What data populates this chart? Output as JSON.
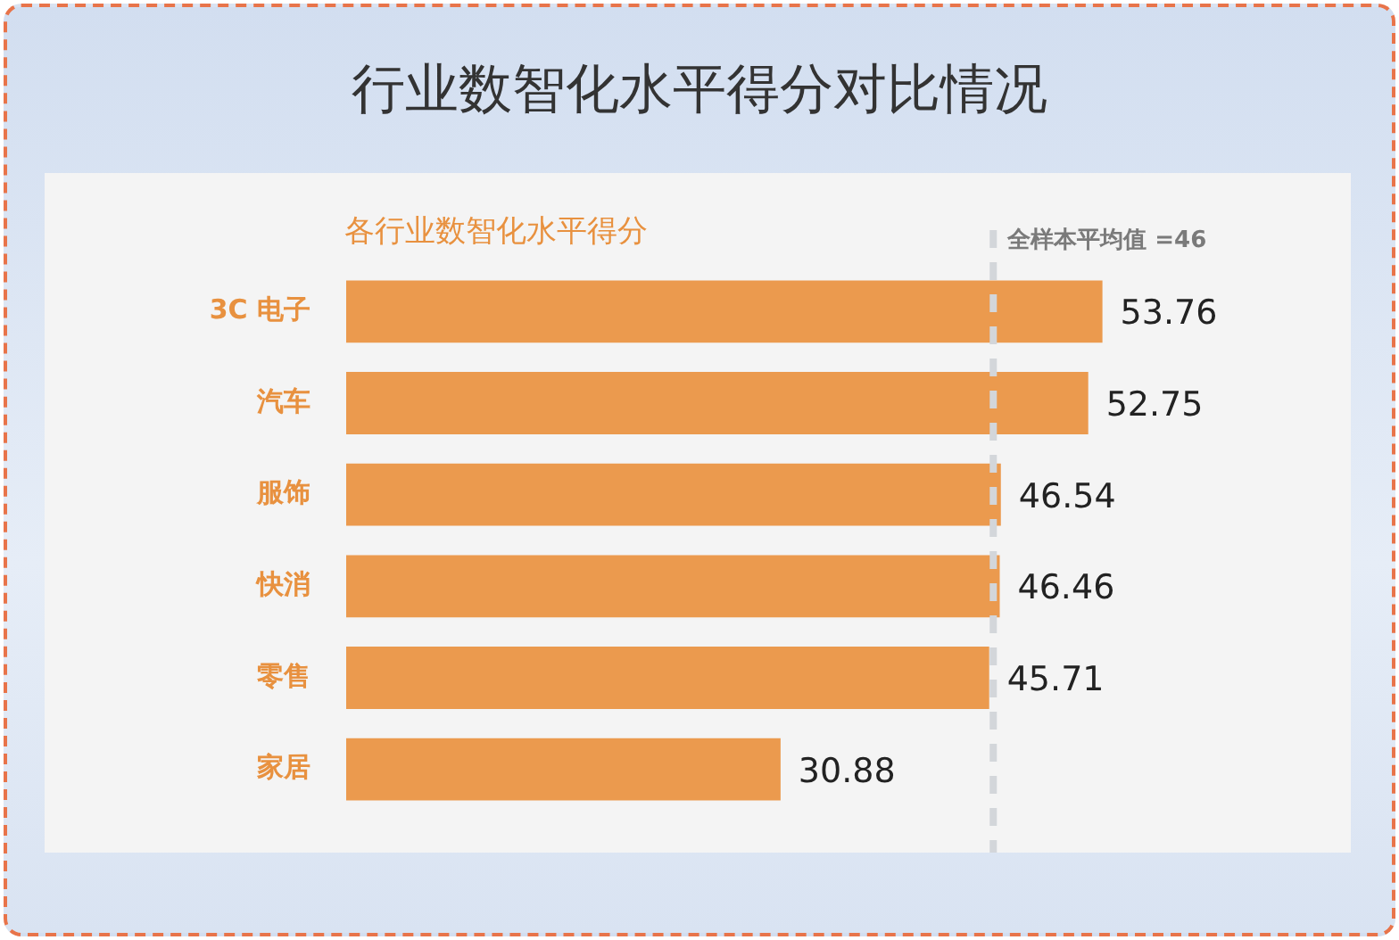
{
  "chart_data": {
    "type": "bar",
    "orientation": "horizontal",
    "title": "行业数智化水平得分对比情况",
    "subtitle": "各行业数智化水平得分",
    "categories": [
      "3C 电子",
      "汽车",
      "服饰",
      "快消",
      "零售",
      "家居"
    ],
    "values": [
      53.76,
      52.75,
      46.54,
      46.46,
      45.71,
      30.88
    ],
    "color": "#eb9a4e",
    "tick_labels": "y",
    "legend": false,
    "data_labels": true,
    "ref_lines": [
      {
        "axis": "x",
        "value": 46,
        "label": "全样本平均值 =46",
        "color": "#d3d6da",
        "line_style": "dashed"
      }
    ]
  }
}
